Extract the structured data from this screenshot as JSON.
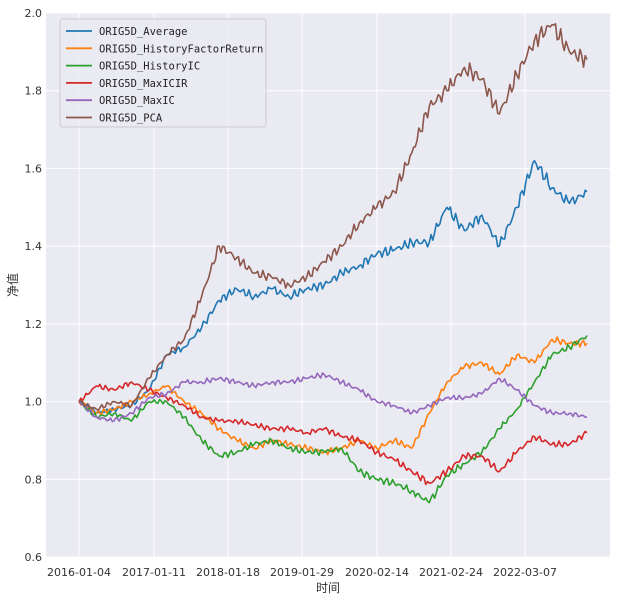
{
  "chart_data": {
    "type": "line",
    "title": "",
    "xlabel": "时间",
    "ylabel": "净值",
    "ylim": [
      0.6,
      2.0
    ],
    "yticks": [
      "0.6",
      "0.8",
      "1.0",
      "1.2",
      "1.4",
      "1.6",
      "1.8",
      "2.0"
    ],
    "xticks": [
      "2016-01-04",
      "2017-01-11",
      "2018-01-18",
      "2019-01-29",
      "2020-02-14",
      "2021-02-24",
      "2022-03-07"
    ],
    "grid": true,
    "legend_position": "top-left",
    "background": "#eaeaf2",
    "x": [
      "2016-01",
      "2016-04",
      "2016-07",
      "2016-10",
      "2017-01",
      "2017-04",
      "2017-07",
      "2017-10",
      "2018-01",
      "2018-04",
      "2018-07",
      "2018-10",
      "2019-01",
      "2019-04",
      "2019-07",
      "2019-10",
      "2020-02",
      "2020-05",
      "2020-08",
      "2020-11",
      "2021-02",
      "2021-05",
      "2021-08",
      "2021-11",
      "2022-03",
      "2022-06",
      "2022-09",
      "2022-12",
      "2023-03",
      "2023-06"
    ],
    "series": [
      {
        "name": "ORIG5D_Average",
        "color": "#1f77b4",
        "values": [
          1.0,
          0.97,
          0.98,
          0.99,
          1.03,
          1.12,
          1.14,
          1.19,
          1.26,
          1.29,
          1.27,
          1.29,
          1.27,
          1.29,
          1.3,
          1.33,
          1.35,
          1.38,
          1.39,
          1.41,
          1.41,
          1.5,
          1.44,
          1.48,
          1.4,
          1.5,
          1.62,
          1.55,
          1.51,
          1.54
        ]
      },
      {
        "name": "ORIG5D_HistoryFactorReturn",
        "color": "#ff7f0e",
        "values": [
          1.0,
          0.97,
          0.98,
          1.0,
          1.02,
          1.04,
          1.0,
          0.97,
          0.93,
          0.9,
          0.88,
          0.9,
          0.89,
          0.88,
          0.87,
          0.88,
          0.9,
          0.88,
          0.9,
          0.88,
          0.97,
          1.05,
          1.09,
          1.1,
          1.07,
          1.12,
          1.1,
          1.16,
          1.15,
          1.15
        ]
      },
      {
        "name": "ORIG5D_HistoryIC",
        "color": "#2ca02c",
        "values": [
          1.0,
          0.96,
          0.97,
          0.95,
          1.0,
          1.0,
          0.96,
          0.9,
          0.86,
          0.87,
          0.89,
          0.9,
          0.88,
          0.87,
          0.87,
          0.88,
          0.82,
          0.8,
          0.79,
          0.77,
          0.74,
          0.81,
          0.84,
          0.87,
          0.93,
          0.98,
          1.05,
          1.12,
          1.14,
          1.17
        ]
      },
      {
        "name": "ORIG5D_MaxICIR",
        "color": "#d62728",
        "values": [
          1.0,
          1.04,
          1.03,
          1.05,
          1.03,
          1.01,
          0.99,
          0.96,
          0.95,
          0.95,
          0.94,
          0.93,
          0.93,
          0.92,
          0.93,
          0.91,
          0.9,
          0.87,
          0.85,
          0.82,
          0.79,
          0.82,
          0.86,
          0.86,
          0.82,
          0.87,
          0.91,
          0.89,
          0.89,
          0.92
        ]
      },
      {
        "name": "ORIG5D_MaxIC",
        "color": "#9467bd",
        "values": [
          1.0,
          0.96,
          0.95,
          0.97,
          1.01,
          1.02,
          1.05,
          1.05,
          1.06,
          1.05,
          1.04,
          1.05,
          1.05,
          1.06,
          1.07,
          1.05,
          1.03,
          1.0,
          0.99,
          0.97,
          0.99,
          1.01,
          1.01,
          1.02,
          1.06,
          1.03,
          0.99,
          0.97,
          0.97,
          0.96
        ]
      },
      {
        "name": "ORIG5D_PCA",
        "color": "#8c564b",
        "values": [
          1.0,
          0.98,
          1.0,
          0.99,
          1.06,
          1.12,
          1.16,
          1.27,
          1.4,
          1.37,
          1.33,
          1.32,
          1.3,
          1.32,
          1.36,
          1.4,
          1.46,
          1.5,
          1.54,
          1.64,
          1.76,
          1.8,
          1.86,
          1.83,
          1.74,
          1.84,
          1.93,
          1.97,
          1.9,
          1.88
        ]
      }
    ]
  }
}
